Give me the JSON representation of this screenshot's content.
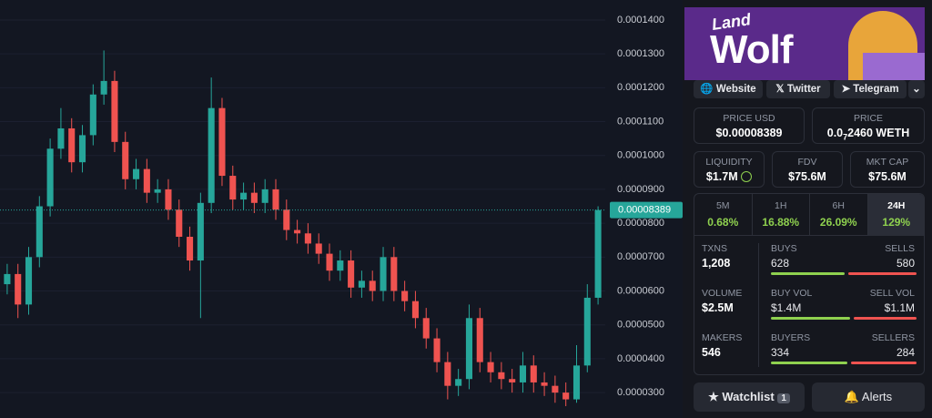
{
  "chart": {
    "type": "candlestick",
    "open": [
      6.2e-05,
      6.5e-05,
      5.6e-05,
      7e-05,
      8.5e-05,
      0.000102,
      0.000108,
      9.8e-05,
      0.000106,
      0.000118,
      0.000122,
      0.000104,
      9.3e-05,
      9.6e-05,
      8.9e-05,
      9e-05,
      8.4e-05,
      7.6e-05,
      6.9e-05,
      8.6e-05,
      0.000114,
      9.4e-05,
      8.7e-05,
      8.9e-05,
      8.6e-05,
      9e-05,
      8.4e-05,
      7.8e-05,
      7.7e-05,
      7.4e-05,
      7.1e-05,
      6.6e-05,
      6.9e-05,
      6.1e-05,
      6.3e-05,
      6e-05,
      7e-05,
      6e-05,
      5.7e-05,
      5.2e-05,
      4.6e-05,
      3.9e-05,
      3.2e-05,
      3.4e-05,
      5.2e-05,
      3.9e-05,
      3.6e-05,
      3.4e-05,
      3.3e-05,
      3.8e-05,
      3.3e-05,
      3.2e-05,
      3e-05,
      2.8e-05,
      3.8e-05,
      5.8e-05
    ],
    "high": [
      6.8e-05,
      6.8e-05,
      7.3e-05,
      8.8e-05,
      0.000105,
      0.000114,
      0.000111,
      0.000109,
      0.000121,
      0.000131,
      0.000125,
      0.000107,
      9.9e-05,
      9.9e-05,
      9.3e-05,
      9.3e-05,
      8.7e-05,
      7.9e-05,
      8.9e-05,
      0.000123,
      0.000117,
      9.7e-05,
      9.2e-05,
      9.2e-05,
      9.3e-05,
      9.3e-05,
      8.7e-05,
      8.1e-05,
      8e-05,
      7.7e-05,
      7.4e-05,
      7.2e-05,
      7.2e-05,
      6.6e-05,
      6.6e-05,
      7.3e-05,
      7.3e-05,
      6.3e-05,
      6e-05,
      5.5e-05,
      4.9e-05,
      4.2e-05,
      3.7e-05,
      5.6e-05,
      5.5e-05,
      4.2e-05,
      3.9e-05,
      3.7e-05,
      4.2e-05,
      4.1e-05,
      3.6e-05,
      3.5e-05,
      3.3e-05,
      4.4e-05,
      6.2e-05,
      8.5e-05
    ],
    "low": [
      5.9e-05,
      5.2e-05,
      5.3e-05,
      6.7e-05,
      8.2e-05,
      9.9e-05,
      9.5e-05,
      9.5e-05,
      0.000103,
      0.000115,
      0.000101,
      9e-05,
      9e-05,
      8.6e-05,
      8.6e-05,
      8.1e-05,
      7.3e-05,
      6.6e-05,
      5.2e-05,
      8.3e-05,
      9.1e-05,
      8.4e-05,
      8.4e-05,
      8.3e-05,
      8.3e-05,
      8.1e-05,
      7.5e-05,
      7.4e-05,
      7.1e-05,
      6.8e-05,
      6.3e-05,
      6.3e-05,
      5.8e-05,
      5.8e-05,
      5.7e-05,
      5.7e-05,
      5.7e-05,
      5.4e-05,
      4.9e-05,
      4.3e-05,
      3.6e-05,
      2.8e-05,
      2.9e-05,
      3.1e-05,
      3.6e-05,
      3.3e-05,
      3.1e-05,
      3e-05,
      3e-05,
      3e-05,
      2.9e-05,
      2.7e-05,
      2.6e-05,
      2.7e-05,
      3.6e-05,
      5.6e-05
    ],
    "close": [
      6.5e-05,
      5.6e-05,
      7e-05,
      8.5e-05,
      0.000102,
      0.000108,
      9.8e-05,
      0.000106,
      0.000118,
      0.000122,
      0.000104,
      9.3e-05,
      9.6e-05,
      8.9e-05,
      9e-05,
      8.4e-05,
      7.6e-05,
      6.9e-05,
      8.6e-05,
      0.000114,
      9.4e-05,
      8.7e-05,
      8.9e-05,
      8.6e-05,
      9e-05,
      8.4e-05,
      7.8e-05,
      7.7e-05,
      7.4e-05,
      7.1e-05,
      6.6e-05,
      6.9e-05,
      6.1e-05,
      6.3e-05,
      6e-05,
      7e-05,
      6e-05,
      5.7e-05,
      5.2e-05,
      4.6e-05,
      3.9e-05,
      3.2e-05,
      3.4e-05,
      5.2e-05,
      3.9e-05,
      3.6e-05,
      3.4e-05,
      3.3e-05,
      3.8e-05,
      3.3e-05,
      3.2e-05,
      3e-05,
      2.8e-05,
      3.8e-05,
      5.8e-05,
      8.389e-05
    ],
    "ylim": [
      2.25e-05,
      0.0001459
    ],
    "yticks": [
      {
        "value": 3e-05,
        "label": "0.0000300"
      },
      {
        "value": 4e-05,
        "label": "0.0000400"
      },
      {
        "value": 5e-05,
        "label": "0.0000500"
      },
      {
        "value": 6e-05,
        "label": "0.0000600"
      },
      {
        "value": 7e-05,
        "label": "0.0000700"
      },
      {
        "value": 8e-05,
        "label": "0.0000800"
      },
      {
        "value": 9e-05,
        "label": "0.0000900"
      },
      {
        "value": 0.0001,
        "label": "0.0001000"
      },
      {
        "value": 0.00011,
        "label": "0.0001100"
      },
      {
        "value": 0.00012,
        "label": "0.0001200"
      },
      {
        "value": 0.00013,
        "label": "0.0001300"
      },
      {
        "value": 0.00014,
        "label": "0.0001400"
      }
    ],
    "up_color": "#26a69a",
    "down_color": "#ef5350",
    "grid": true
  },
  "banner": {
    "line1": "Land",
    "line2": "Wolf"
  },
  "links": [
    "Website",
    "Twitter",
    "Telegram"
  ],
  "price_usd": {
    "label": "PRICE USD",
    "value": "$0.00008389"
  },
  "price_native": {
    "label": "PRICE",
    "prefix": "0.0",
    "zeros": "7",
    "rest": "2460 WETH"
  },
  "stats": [
    {
      "label": "LIQUIDITY",
      "value": "$1.7M"
    },
    {
      "label": "FDV",
      "value": "$75.6M"
    },
    {
      "label": "MKT CAP",
      "value": "$75.6M"
    }
  ],
  "timeframes": [
    {
      "label": "5M",
      "change": "0.68%"
    },
    {
      "label": "1H",
      "change": "16.88%"
    },
    {
      "label": "6H",
      "change": "26.09%"
    },
    {
      "label": "24H",
      "change": "129%"
    }
  ],
  "selected_timeframe": 3,
  "txns": {
    "label": "TXNS",
    "value": "1,208",
    "buys_label": "BUYS",
    "buys": 628,
    "sells_label": "SELLS",
    "sells": 580
  },
  "volume": {
    "label": "VOLUME",
    "value": "$2.5M",
    "buys_label": "BUY VOL",
    "buys": {
      "value": 1400000,
      "label": "$1.4M"
    },
    "sells_label": "SELL VOL",
    "sells": {
      "value": 1100000,
      "label": "$1.1M"
    }
  },
  "makers": {
    "label": "MAKERS",
    "value": "546",
    "buys_label": "BUYERS",
    "buys": 334,
    "sells_label": "SELLERS",
    "sells": 284
  },
  "buttons": {
    "watchlist": "Watchlist",
    "watchlist_count": 1,
    "alerts": "Alerts"
  }
}
